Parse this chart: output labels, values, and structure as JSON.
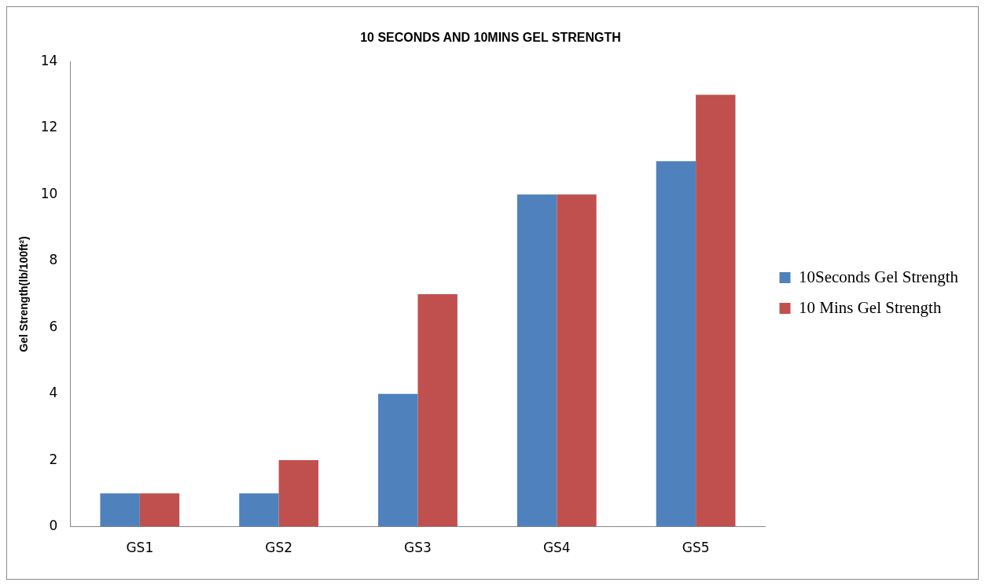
{
  "chart_data": {
    "type": "bar",
    "title": "10 SECONDS AND 10MINS GEL STRENGTH",
    "ylabel": "Gel Strength(lb/100ft²)",
    "categories": [
      "GS1",
      "GS2",
      "GS3",
      "GS4",
      "GS5"
    ],
    "series": [
      {
        "name": "10Seconds Gel Strength",
        "color": "#4f81bd",
        "values": [
          1,
          1,
          4,
          10,
          11
        ]
      },
      {
        "name": "10 Mins Gel Strength",
        "color": "#c0504d",
        "values": [
          1,
          2,
          7,
          10,
          13
        ]
      }
    ],
    "ylim": [
      0,
      14
    ],
    "yticks": [
      0,
      2,
      4,
      6,
      8,
      10,
      12,
      14
    ],
    "grid": false,
    "legend": "right"
  }
}
